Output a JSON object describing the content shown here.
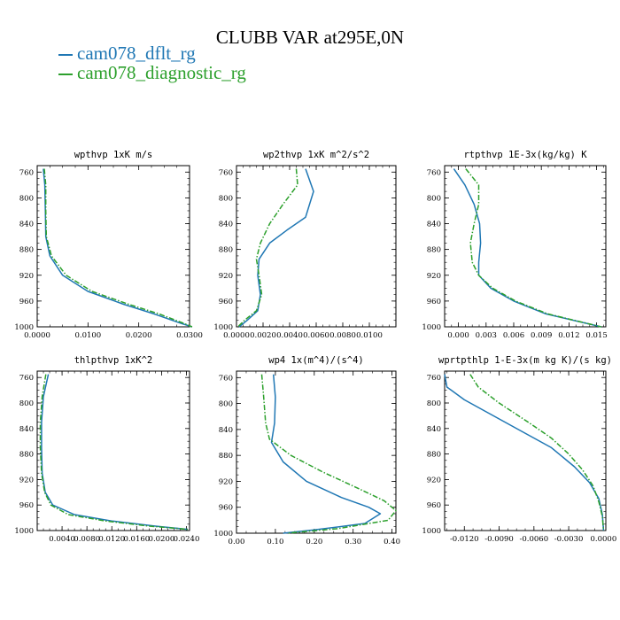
{
  "title": "CLUBB VAR at295E,0N",
  "legend": [
    {
      "label": "cam078_dflt_rg",
      "color": "#1f77b4"
    },
    {
      "label": "cam078_diagnostic_rg",
      "color": "#2ca02c"
    }
  ],
  "chart_data": [
    {
      "type": "line",
      "title": "wpthvp  1xK m/s",
      "xlim": [
        0,
        0.03
      ],
      "xticks": [
        "0.0000",
        "0.0100",
        "0.0200",
        "0.0300"
      ],
      "xtick_values": [
        0,
        0.01,
        0.02,
        0.03
      ],
      "ylim": [
        1000,
        750
      ],
      "yticks": [
        760,
        800,
        840,
        880,
        920,
        960,
        1000
      ],
      "series": [
        {
          "name": "cam078_dflt_rg",
          "color": "#1f77b4",
          "points": [
            [
              0.0012,
              755
            ],
            [
              0.0015,
              780
            ],
            [
              0.0016,
              820
            ],
            [
              0.0017,
              860
            ],
            [
              0.0025,
              890
            ],
            [
              0.005,
              920
            ],
            [
              0.01,
              945
            ],
            [
              0.017,
              965
            ],
            [
              0.023,
              980
            ],
            [
              0.0285,
              995
            ],
            [
              0.0305,
              1000
            ]
          ]
        },
        {
          "name": "cam078_diagnostic_rg",
          "color": "#2ca02c",
          "dashed": true,
          "points": [
            [
              0.0014,
              755
            ],
            [
              0.0017,
              780
            ],
            [
              0.0017,
              820
            ],
            [
              0.0018,
              860
            ],
            [
              0.0028,
              890
            ],
            [
              0.0057,
              920
            ],
            [
              0.0108,
              945
            ],
            [
              0.018,
              965
            ],
            [
              0.024,
              980
            ],
            [
              0.029,
              995
            ],
            [
              0.0305,
              1000
            ]
          ]
        }
      ]
    },
    {
      "type": "line",
      "title": "wp2thvp  1xK m^2/s^2",
      "xlim": [
        0,
        0.012
      ],
      "xticks": [
        "0.0000",
        "0.0020",
        "0.0040",
        "0.0060",
        "0.0080",
        "0.0100"
      ],
      "xtick_values": [
        0,
        0.002,
        0.004,
        0.006,
        0.008,
        0.01
      ],
      "ylim": [
        1000,
        750
      ],
      "yticks": [
        760,
        800,
        840,
        880,
        920,
        960,
        1000
      ],
      "series": [
        {
          "name": "cam078_dflt_rg",
          "color": "#1f77b4",
          "points": [
            [
              0.0052,
              755
            ],
            [
              0.0058,
              790
            ],
            [
              0.0052,
              830
            ],
            [
              0.0038,
              850
            ],
            [
              0.0025,
              870
            ],
            [
              0.0017,
              895
            ],
            [
              0.0016,
              920
            ],
            [
              0.0018,
              950
            ],
            [
              0.0016,
              975
            ],
            [
              0.0008,
              990
            ],
            [
              0.0002,
              1000
            ]
          ]
        },
        {
          "name": "cam078_diagnostic_rg",
          "color": "#2ca02c",
          "dashed": true,
          "points": [
            [
              0.0045,
              755
            ],
            [
              0.0046,
              780
            ],
            [
              0.0035,
              810
            ],
            [
              0.0025,
              840
            ],
            [
              0.0018,
              870
            ],
            [
              0.0015,
              895
            ],
            [
              0.0017,
              920
            ],
            [
              0.0019,
              950
            ],
            [
              0.0015,
              975
            ],
            [
              0.0006,
              990
            ],
            [
              0.0001,
              1000
            ]
          ]
        }
      ]
    },
    {
      "type": "line",
      "title": "rtpthvp  1E-3x(kg/kg) K",
      "xlim": [
        -0.0015,
        0.016
      ],
      "xticks": [
        "0.000",
        "0.003",
        "0.006",
        "0.009",
        "0.012",
        "0.015"
      ],
      "xtick_values": [
        0,
        0.003,
        0.006,
        0.009,
        0.012,
        0.015
      ],
      "ylim": [
        1000,
        750
      ],
      "yticks": [
        760,
        800,
        840,
        880,
        920,
        960,
        1000
      ],
      "series": [
        {
          "name": "cam078_dflt_rg",
          "color": "#1f77b4",
          "points": [
            [
              -0.0005,
              755
            ],
            [
              0.0007,
              780
            ],
            [
              0.0017,
              810
            ],
            [
              0.0023,
              840
            ],
            [
              0.0024,
              870
            ],
            [
              0.0022,
              900
            ],
            [
              0.0022,
              920
            ],
            [
              0.0035,
              940
            ],
            [
              0.006,
              960
            ],
            [
              0.0095,
              980
            ],
            [
              0.0155,
              1000
            ]
          ]
        },
        {
          "name": "cam078_diagnostic_rg",
          "color": "#2ca02c",
          "dashed": true,
          "points": [
            [
              0.0008,
              755
            ],
            [
              0.0022,
              780
            ],
            [
              0.0022,
              810
            ],
            [
              0.0017,
              840
            ],
            [
              0.0013,
              870
            ],
            [
              0.0015,
              900
            ],
            [
              0.0022,
              920
            ],
            [
              0.0037,
              940
            ],
            [
              0.0062,
              960
            ],
            [
              0.0097,
              980
            ],
            [
              0.0155,
              1000
            ]
          ]
        }
      ]
    },
    {
      "type": "line",
      "title": "thlpthvp  1xK^2",
      "xlim": [
        0,
        0.0245
      ],
      "xticks": [
        "0.0040",
        "0.0080",
        "0.0120",
        "0.0160",
        "0.0200",
        "0.0240"
      ],
      "xtick_values": [
        0.004,
        0.008,
        0.012,
        0.016,
        0.02,
        0.024
      ],
      "ylim": [
        1000,
        750
      ],
      "yticks": [
        760,
        800,
        840,
        880,
        920,
        960,
        1000
      ],
      "series": [
        {
          "name": "cam078_dflt_rg",
          "color": "#1f77b4",
          "points": [
            [
              0.0018,
              755
            ],
            [
              0.001,
              790
            ],
            [
              0.0007,
              830
            ],
            [
              0.0007,
              870
            ],
            [
              0.0008,
              910
            ],
            [
              0.0013,
              940
            ],
            [
              0.0025,
              960
            ],
            [
              0.006,
              975
            ],
            [
              0.012,
              985
            ],
            [
              0.019,
              993
            ],
            [
              0.0242,
              998
            ]
          ]
        },
        {
          "name": "cam078_diagnostic_rg",
          "color": "#2ca02c",
          "dashed": true,
          "points": [
            [
              0.0014,
              755
            ],
            [
              0.0008,
              790
            ],
            [
              0.0005,
              830
            ],
            [
              0.0005,
              870
            ],
            [
              0.0007,
              910
            ],
            [
              0.0012,
              940
            ],
            [
              0.0022,
              960
            ],
            [
              0.005,
              975
            ],
            [
              0.011,
              985
            ],
            [
              0.018,
              993
            ],
            [
              0.0242,
              998
            ]
          ]
        }
      ]
    },
    {
      "type": "line",
      "title": "wp4  1x(m^4)/(s^4)",
      "xlim": [
        0,
        0.41
      ],
      "xticks": [
        "0.00",
        "0.10",
        "0.20",
        "0.30",
        "0.40"
      ],
      "xtick_values": [
        0,
        0.1,
        0.2,
        0.3,
        0.4
      ],
      "ylim": [
        1000,
        750
      ],
      "yticks": [
        760,
        800,
        840,
        880,
        920,
        960,
        1000
      ],
      "series": [
        {
          "name": "cam078_dflt_rg",
          "color": "#1f77b4",
          "points": [
            [
              0.095,
              755
            ],
            [
              0.1,
              790
            ],
            [
              0.098,
              830
            ],
            [
              0.09,
              860
            ],
            [
              0.12,
              890
            ],
            [
              0.18,
              920
            ],
            [
              0.27,
              945
            ],
            [
              0.34,
              960
            ],
            [
              0.37,
              970
            ],
            [
              0.33,
              985
            ],
            [
              0.2,
              995
            ],
            [
              0.12,
              1000
            ]
          ]
        },
        {
          "name": "cam078_diagnostic_rg",
          "color": "#2ca02c",
          "dashed": true,
          "points": [
            [
              0.065,
              755
            ],
            [
              0.07,
              790
            ],
            [
              0.075,
              830
            ],
            [
              0.085,
              855
            ],
            [
              0.14,
              880
            ],
            [
              0.22,
              905
            ],
            [
              0.31,
              930
            ],
            [
              0.38,
              950
            ],
            [
              0.41,
              965
            ],
            [
              0.39,
              980
            ],
            [
              0.26,
              993
            ],
            [
              0.13,
              1000
            ]
          ]
        }
      ]
    },
    {
      "type": "line",
      "title": "wprtpthlp  1-E-3x(m kg K)/(s kg)",
      "xlim": [
        -0.0137,
        0.0002
      ],
      "xticks": [
        "-0.0120",
        "-0.0090",
        "-0.0060",
        "-0.0030",
        "0.0000"
      ],
      "xtick_values": [
        -0.012,
        -0.009,
        -0.006,
        -0.003,
        0
      ],
      "ylim": [
        1000,
        750
      ],
      "yticks": [
        760,
        800,
        840,
        880,
        920,
        960,
        1000
      ],
      "series": [
        {
          "name": "cam078_dflt_rg",
          "color": "#1f77b4",
          "points": [
            [
              -0.0137,
              755
            ],
            [
              -0.0135,
              775
            ],
            [
              -0.012,
              795
            ],
            [
              -0.0095,
              820
            ],
            [
              -0.007,
              845
            ],
            [
              -0.0045,
              870
            ],
            [
              -0.0025,
              900
            ],
            [
              -0.0012,
              925
            ],
            [
              -0.0004,
              950
            ],
            [
              -0.0001,
              975
            ],
            [
              0,
              1000
            ]
          ]
        },
        {
          "name": "cam078_diagnostic_rg",
          "color": "#2ca02c",
          "dashed": true,
          "points": [
            [
              -0.0115,
              755
            ],
            [
              -0.0108,
              775
            ],
            [
              -0.009,
              800
            ],
            [
              -0.0065,
              830
            ],
            [
              -0.0045,
              855
            ],
            [
              -0.003,
              880
            ],
            [
              -0.0018,
              905
            ],
            [
              -0.0009,
              930
            ],
            [
              -0.0004,
              955
            ],
            [
              -0.0001,
              978
            ],
            [
              0,
              1000
            ]
          ]
        }
      ]
    }
  ]
}
